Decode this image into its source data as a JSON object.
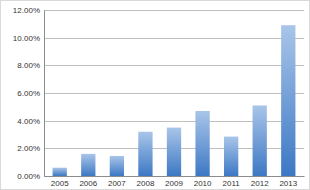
{
  "chart_data": {
    "type": "bar",
    "categories": [
      "2005",
      "2006",
      "2007",
      "2008",
      "2009",
      "2010",
      "2011",
      "2012",
      "2013"
    ],
    "values": [
      0.6,
      1.6,
      1.45,
      3.2,
      3.5,
      4.7,
      2.85,
      5.1,
      10.9
    ],
    "color": "#3f7fcf",
    "ylim": [
      0,
      12
    ],
    "yticks": [
      {
        "value": 0,
        "label": "0.00%"
      },
      {
        "value": 2,
        "label": "2.00%"
      },
      {
        "value": 4,
        "label": "4.00%"
      },
      {
        "value": 6,
        "label": "6.00%"
      },
      {
        "value": 8,
        "label": "8.00%"
      },
      {
        "value": 10,
        "label": "10.00%"
      },
      {
        "value": 12,
        "label": "12.00%"
      }
    ],
    "grid": true
  }
}
